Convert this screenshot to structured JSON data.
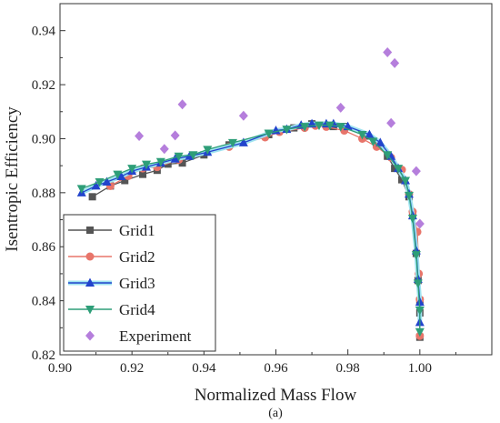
{
  "panel_label": "(a)",
  "chart_data": {
    "type": "line",
    "xlabel": "Normalized Mass Flow",
    "ylabel": "Isentropic Efficiency",
    "xlim": [
      0.9,
      1.02
    ],
    "ylim": [
      0.82,
      0.95
    ],
    "xticks": [
      "0.90",
      "0.92",
      "0.94",
      "0.96",
      "0.98",
      "1.00"
    ],
    "yticks": [
      "0.82",
      "0.84",
      "0.86",
      "0.88",
      "0.90",
      "0.92",
      "0.94"
    ],
    "grid": false,
    "legend_position": "bottom-left",
    "series": [
      {
        "name": "Grid1",
        "color": "#555555",
        "marker": "square",
        "x": [
          0.909,
          0.914,
          0.918,
          0.923,
          0.927,
          0.93,
          0.934,
          0.94,
          0.947,
          0.958,
          0.965,
          0.97,
          0.976,
          0.979,
          0.985,
          0.988,
          0.991,
          0.993,
          0.995,
          0.997,
          0.998,
          0.999,
          0.9995,
          1.0,
          1.0,
          1.0
        ],
        "y": [
          0.8785,
          0.8825,
          0.8845,
          0.8868,
          0.8883,
          0.8906,
          0.891,
          0.894,
          0.8977,
          0.9015,
          0.904,
          0.9055,
          0.9045,
          0.9045,
          0.901,
          0.8985,
          0.8935,
          0.889,
          0.8848,
          0.8785,
          0.8715,
          0.8575,
          0.8475,
          0.84,
          0.8355,
          0.8265
        ]
      },
      {
        "name": "Grid2",
        "color": "#E8756A",
        "marker": "circle",
        "x": [
          0.914,
          0.919,
          0.923,
          0.927,
          0.933,
          0.947,
          0.957,
          0.961,
          0.968,
          0.971,
          0.974,
          0.979,
          0.984,
          0.988,
          0.992,
          0.995,
          0.997,
          0.998,
          0.9993,
          0.9997,
          1.0,
          1.0
        ],
        "y": [
          0.8825,
          0.8862,
          0.889,
          0.8895,
          0.8922,
          0.897,
          0.9005,
          0.9025,
          0.904,
          0.9048,
          0.9044,
          0.903,
          0.9,
          0.897,
          0.893,
          0.8885,
          0.8795,
          0.873,
          0.8655,
          0.85,
          0.8405,
          0.827
        ]
      },
      {
        "name": "Grid3",
        "color": "#2244CC",
        "marker": "triangle-up",
        "x": [
          0.906,
          0.91,
          0.913,
          0.917,
          0.92,
          0.924,
          0.928,
          0.932,
          0.936,
          0.941,
          0.951,
          0.96,
          0.963,
          0.967,
          0.97,
          0.974,
          0.976,
          0.98,
          0.986,
          0.989,
          0.992,
          0.994,
          0.996,
          0.997,
          0.998,
          0.999,
          0.9995,
          1.0,
          1.0
        ],
        "y": [
          0.88,
          0.8825,
          0.884,
          0.886,
          0.888,
          0.8895,
          0.891,
          0.8925,
          0.8935,
          0.895,
          0.8985,
          0.903,
          0.9035,
          0.905,
          0.9055,
          0.9055,
          0.9055,
          0.9045,
          0.9015,
          0.8985,
          0.8935,
          0.889,
          0.8845,
          0.8795,
          0.8715,
          0.8585,
          0.848,
          0.8395,
          0.832
        ]
      },
      {
        "name": "Grid4",
        "color": "#2E9E78",
        "marker": "triangle-down",
        "x": [
          0.906,
          0.911,
          0.916,
          0.92,
          0.924,
          0.928,
          0.933,
          0.937,
          0.941,
          0.948,
          0.958,
          0.963,
          0.968,
          0.972,
          0.975,
          0.978,
          0.984,
          0.987,
          0.991,
          0.994,
          0.996,
          0.997,
          0.998,
          0.999,
          0.9995,
          1.0,
          1.0
        ],
        "y": [
          0.8815,
          0.884,
          0.8868,
          0.889,
          0.8905,
          0.8915,
          0.8935,
          0.894,
          0.896,
          0.8985,
          0.902,
          0.9035,
          0.9045,
          0.905,
          0.905,
          0.9045,
          0.9015,
          0.899,
          0.894,
          0.889,
          0.8845,
          0.879,
          0.8705,
          0.857,
          0.8465,
          0.8365,
          0.8285
        ]
      },
      {
        "name": "Experiment",
        "color": "#B57EDC",
        "marker": "diamond",
        "x": [
          0.922,
          0.929,
          0.932,
          0.934,
          0.951,
          0.978,
          0.991,
          0.992,
          0.993,
          0.999,
          1.0
        ],
        "y": [
          0.901,
          0.8962,
          0.9012,
          0.9127,
          0.9085,
          0.9115,
          0.932,
          0.9058,
          0.928,
          0.888,
          0.8685
        ]
      }
    ]
  }
}
